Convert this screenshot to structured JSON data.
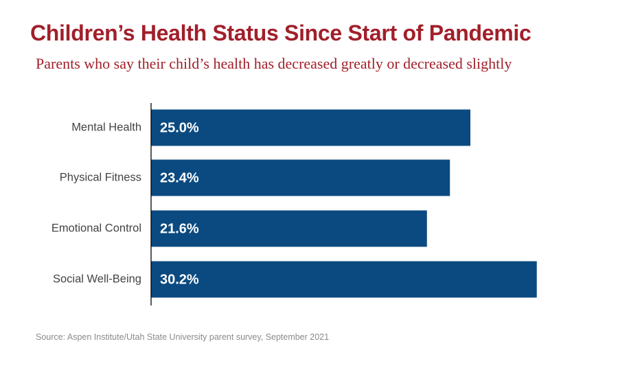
{
  "chart_data": {
    "type": "bar",
    "orientation": "horizontal",
    "title": "Children’s Health Status Since Start of Pandemic",
    "subtitle": "Parents who say their child’s health has decreased greatly or decreased slightly",
    "categories": [
      "Mental Health",
      "Physical Fitness",
      "Emotional Control",
      "Social Well-Being"
    ],
    "values": [
      25.0,
      23.4,
      21.6,
      30.2
    ],
    "value_labels": [
      "25.0%",
      "23.4%",
      "21.6%",
      "30.2%"
    ],
    "xlim": [
      0,
      100
    ],
    "grid": false,
    "legend": "none",
    "bar_color": "#0b4a80",
    "source": "Source: Aspen Institute/Utah State University parent survey, September 2021"
  },
  "colors": {
    "title": "#a11f2a",
    "bar": "#0b4a80",
    "axis": "#000000",
    "category_text": "#444444",
    "value_text": "#ffffff",
    "source_text": "#8a8a8a"
  }
}
